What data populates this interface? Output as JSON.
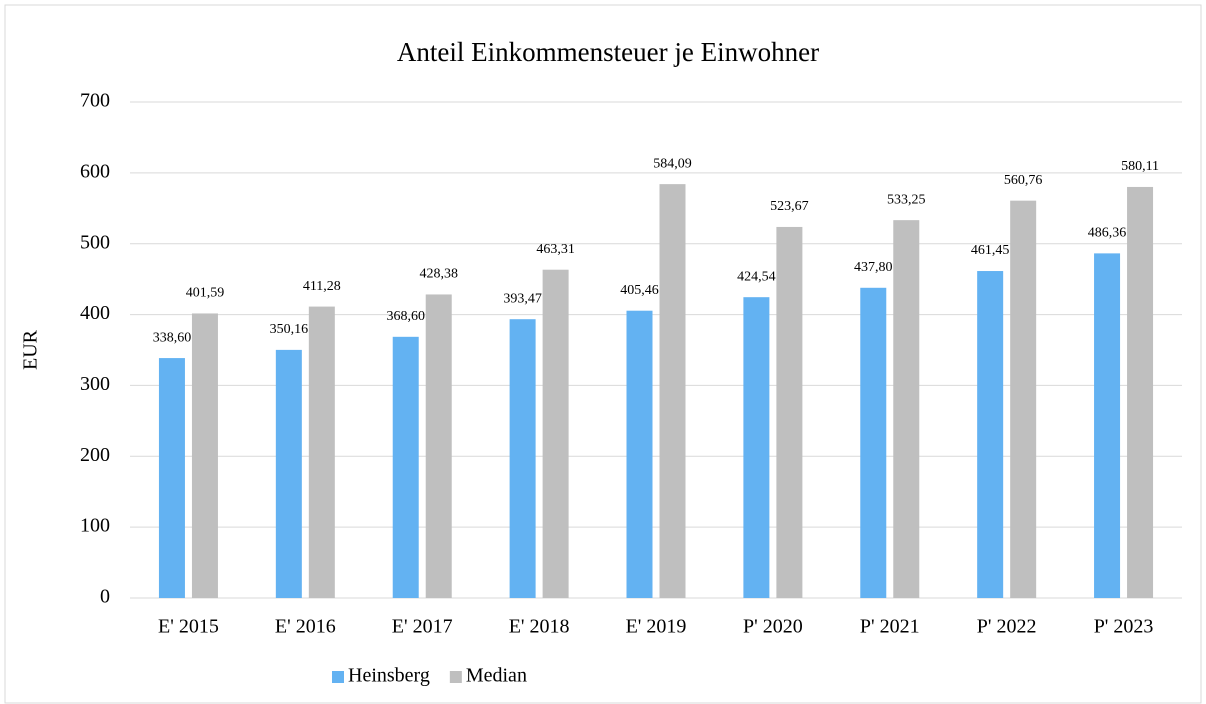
{
  "chart_data": {
    "type": "bar",
    "title": "Anteil Einkommensteuer je Einwohner",
    "y_label": "EUR",
    "categories": [
      "E' 2015",
      "E' 2016",
      "E' 2017",
      "E' 2018",
      "E' 2019",
      "P' 2020",
      "P' 2021",
      "P' 2022",
      "P' 2023"
    ],
    "series": [
      {
        "name": "Heinsberg",
        "color": "#63b2f2",
        "values": [
          338.6,
          350.16,
          368.6,
          393.47,
          405.46,
          424.54,
          437.8,
          461.45,
          486.36
        ],
        "value_labels": [
          "338,60",
          "350,16",
          "368,60",
          "393,47",
          "405,46",
          "424,54",
          "437,80",
          "461,45",
          "486,36"
        ]
      },
      {
        "name": "Median",
        "color": "#bfbfbf",
        "values": [
          401.59,
          411.28,
          428.38,
          463.31,
          584.09,
          523.67,
          533.25,
          560.76,
          580.11
        ],
        "value_labels": [
          "401,59",
          "411,28",
          "428,38",
          "463,31",
          "584,09",
          "523,67",
          "533,25",
          "560,76",
          "580,11"
        ]
      }
    ],
    "ylim": [
      0,
      700
    ],
    "yticks": [
      0,
      100,
      200,
      300,
      400,
      500,
      600,
      700
    ],
    "grid": true,
    "legend": "bottom"
  }
}
